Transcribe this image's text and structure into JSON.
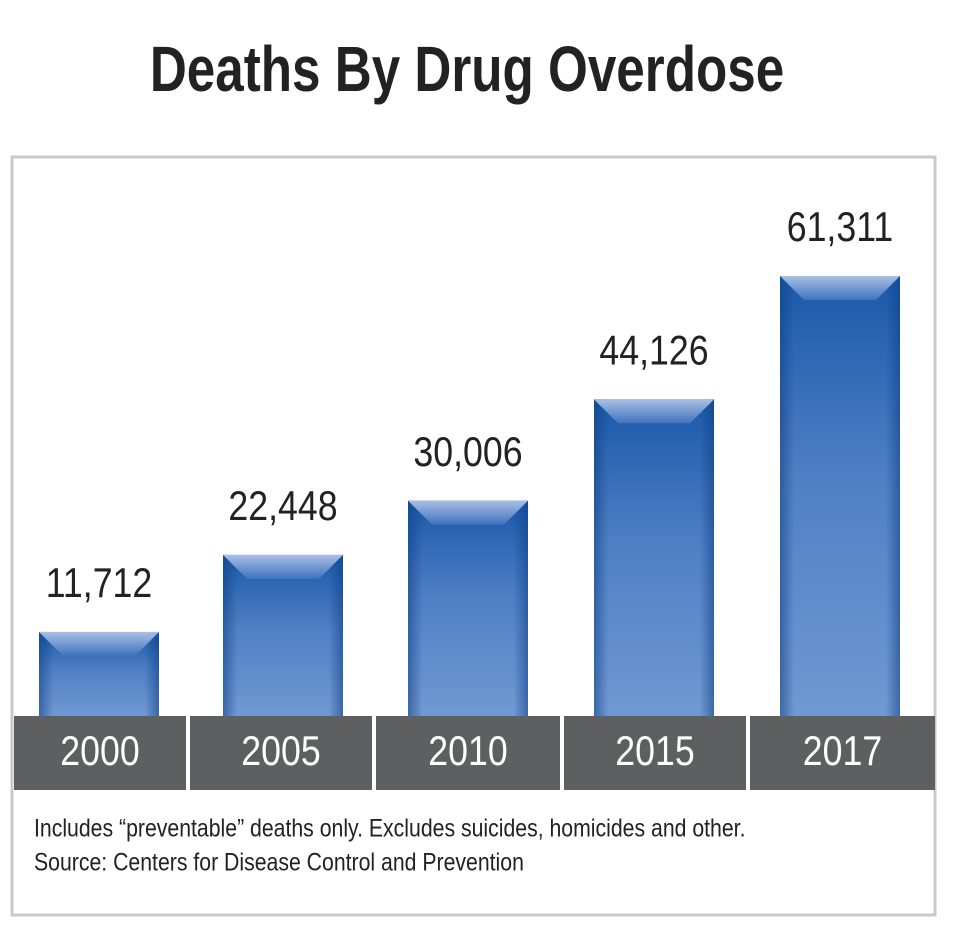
{
  "chart_data": {
    "type": "bar",
    "title": "Deaths By Drug Overdose",
    "categories": [
      "2000",
      "2005",
      "2010",
      "2015",
      "2017"
    ],
    "values": [
      11712,
      22448,
      30006,
      44126,
      61311
    ],
    "value_labels": [
      "11,712",
      "22,448",
      "30,006",
      "44,126",
      "61,311"
    ],
    "color": "#2d64b0",
    "notes": [
      "Includes “preventable” deaths only. Excludes suicides, homicides and other.",
      "Source: Centers for Disease Control and Prevention"
    ]
  }
}
